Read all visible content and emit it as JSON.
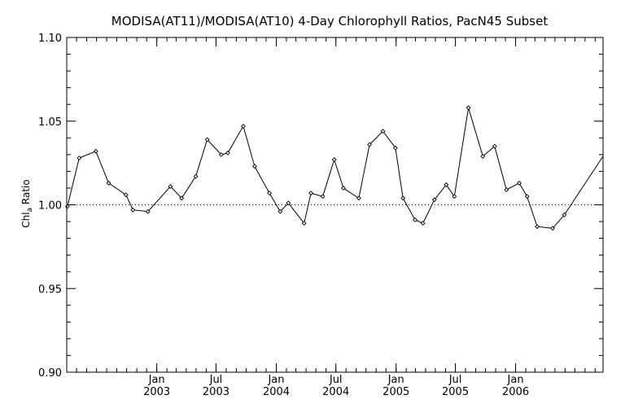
{
  "chart_data": {
    "type": "line",
    "title": "MODISA(AT11)/MODISA(AT10) 4-Day Chlorophyll Ratios, PacN45 Subset",
    "ylabel": {
      "base": "Chl",
      "sub": "a",
      "rest": " Ratio"
    },
    "ylim": [
      0.9,
      1.1
    ],
    "y_ticks": [
      "1.10",
      "1.05",
      "1.00",
      "0.95",
      "0.90"
    ],
    "xlim": [
      "2002-04-01",
      "2006-09-25"
    ],
    "x_tick_labels": [
      {
        "date": "2003-01-01",
        "month": "Jan",
        "year": "2003"
      },
      {
        "date": "2003-07-01",
        "month": "Jul",
        "year": "2003"
      },
      {
        "date": "2004-01-01",
        "month": "Jan",
        "year": "2004"
      },
      {
        "date": "2004-07-01",
        "month": "Jul",
        "year": "2004"
      },
      {
        "date": "2005-01-01",
        "month": "Jan",
        "year": "2005"
      },
      {
        "date": "2005-07-01",
        "month": "Jul",
        "year": "2005"
      },
      {
        "date": "2006-01-01",
        "month": "Jan",
        "year": "2006"
      }
    ],
    "reference_line": 1.0,
    "series": [
      {
        "x": [
          "2002-04-03",
          "2002-05-09",
          "2002-06-29",
          "2002-08-07",
          "2002-09-29",
          "2002-10-20",
          "2002-12-05",
          "2003-02-12",
          "2003-03-18",
          "2003-04-30",
          "2003-06-04",
          "2003-07-17",
          "2003-08-06",
          "2003-09-22",
          "2003-10-27",
          "2003-12-11",
          "2004-01-13",
          "2004-02-07",
          "2004-03-26",
          "2004-04-16",
          "2004-05-22",
          "2004-06-26",
          "2004-07-24",
          "2004-09-09",
          "2004-10-12",
          "2004-11-22",
          "2004-12-30",
          "2005-01-22",
          "2005-02-28",
          "2005-03-24",
          "2005-04-28",
          "2005-06-03",
          "2005-06-28",
          "2005-08-10",
          "2005-09-23",
          "2005-10-29",
          "2005-12-04",
          "2006-01-12",
          "2006-02-05",
          "2006-03-08",
          "2006-04-24",
          "2006-05-30",
          "2006-09-25"
        ],
        "y": [
          0.999,
          1.028,
          1.032,
          1.013,
          1.006,
          0.997,
          0.996,
          1.011,
          1.004,
          1.017,
          1.039,
          1.03,
          1.031,
          1.047,
          1.023,
          1.007,
          0.996,
          1.001,
          0.989,
          1.007,
          1.005,
          1.027,
          1.01,
          1.004,
          1.036,
          1.044,
          1.034,
          1.004,
          0.991,
          0.989,
          1.003,
          1.012,
          1.005,
          1.058,
          1.029,
          1.035,
          1.009,
          1.013,
          1.005,
          0.987,
          0.986,
          0.994,
          1.029
        ],
        "markers": [
          true,
          true,
          true,
          true,
          true,
          true,
          true,
          true,
          true,
          true,
          true,
          true,
          true,
          true,
          true,
          true,
          true,
          true,
          true,
          true,
          true,
          true,
          true,
          true,
          true,
          true,
          true,
          true,
          true,
          true,
          true,
          true,
          true,
          true,
          true,
          true,
          true,
          true,
          true,
          true,
          true,
          true,
          false
        ]
      }
    ],
    "grid": false,
    "legend": "none"
  }
}
